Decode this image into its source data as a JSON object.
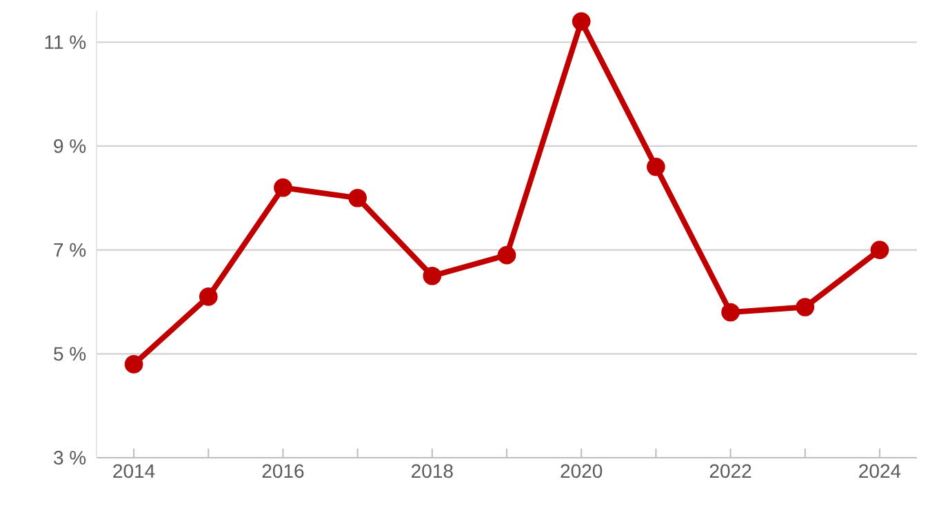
{
  "chart_data": {
    "type": "line",
    "x": [
      2014,
      2015,
      2016,
      2017,
      2018,
      2019,
      2020,
      2021,
      2022,
      2023,
      2024
    ],
    "series": [
      {
        "color": "#c00000",
        "values": [
          4.8,
          6.1,
          8.2,
          8.0,
          6.5,
          6.9,
          11.4,
          8.6,
          5.8,
          5.9,
          7.0
        ]
      }
    ],
    "xlim": [
      2013.5,
      2024.5
    ],
    "xticks": [
      2014,
      {
        "value": 2015,
        "label": null
      },
      2016,
      {
        "value": 2017,
        "label": null
      },
      2018,
      {
        "value": 2019,
        "label": null
      },
      2020,
      {
        "value": 2021,
        "label": null
      },
      2022,
      {
        "value": 2023,
        "label": null
      },
      2024
    ],
    "ylim": [
      3,
      11.6
    ],
    "yticks": [
      {
        "value": 3,
        "label": "3 %"
      },
      {
        "value": 5,
        "label": "5 %"
      },
      {
        "value": 7,
        "label": "7 %"
      },
      {
        "value": 9,
        "label": "9 %"
      },
      {
        "value": 11,
        "label": "11 %"
      }
    ],
    "grid": "y",
    "marker": "circle",
    "line_style": "solid"
  }
}
